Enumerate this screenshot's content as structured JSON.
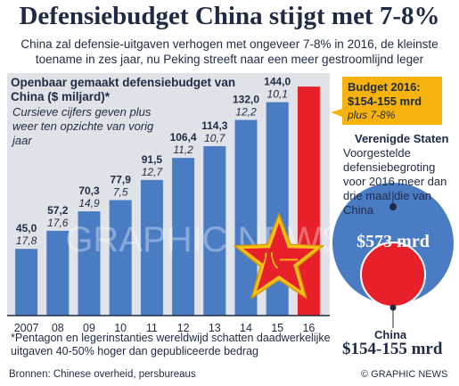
{
  "title": "Defensiebudget China stijgt met 7-8%",
  "subtitle": "China zal defensie-uitgaven verhogen met ongeveer 7-8% in 2016, de kleinste toename in zes jaar, nu Peking streeft naar een meer gestroomlijnd leger",
  "chart_title": "Openbaar gemaakt defensiebudget van China ($ miljard)*",
  "chart_note": "Cursieve cijfers geven plus weer ten opzichte van vorig jaar",
  "budget_box": {
    "line1": "Budget 2016:",
    "line2": "$154-155 mrd",
    "line3": "plus 7-8%"
  },
  "us_title": "Verenigde Staten",
  "us_text": "Voorgestelde defensiebegroting voor 2016 meer dan drie maal die van China",
  "us_amount": "$573 mrd",
  "china_label": "China",
  "china_amount": "$154-155 mrd",
  "footnote": "*Pentagon en legerinstanties wereldwijd schatten daadwerkelijke uitgaven 40-50% hoger dan gepubliceerde bedrag",
  "source": "Bronnen: Chinese overheid, persbureaus",
  "credit": "© GRAPHIC NEWS",
  "watermark": "GRAPHIC NEWS",
  "colors": {
    "bar": "#4a7cc4",
    "highlight": "#e8202a",
    "navy": "#1f2a44",
    "amber": "#f6b30d",
    "circle_us": "#4a7cc4",
    "star": "#f6c21a"
  },
  "chart_data": {
    "type": "bar",
    "categories": [
      "2007",
      "08",
      "09",
      "10",
      "11",
      "12",
      "13",
      "14",
      "15",
      "16"
    ],
    "values": [
      45.0,
      57.2,
      70.3,
      77.9,
      91.5,
      106.4,
      114.3,
      132.0,
      144.0,
      154.5
    ],
    "value_labels": [
      "45,0",
      "57,2",
      "70,3",
      "77,9",
      "91,5",
      "106,4",
      "114,3",
      "132,0",
      "144,0",
      ""
    ],
    "increase_labels": [
      "17,8",
      "17,6",
      "14,9",
      "7,5",
      "12,7",
      "11,2",
      "10,7",
      "12,2",
      "10,1",
      ""
    ],
    "highlight_index": 9,
    "ylim": [
      0,
      160
    ],
    "title": "Openbaar gemaakt defensiebudget van China ($ miljard)*",
    "xlabel": "",
    "ylabel": ""
  }
}
